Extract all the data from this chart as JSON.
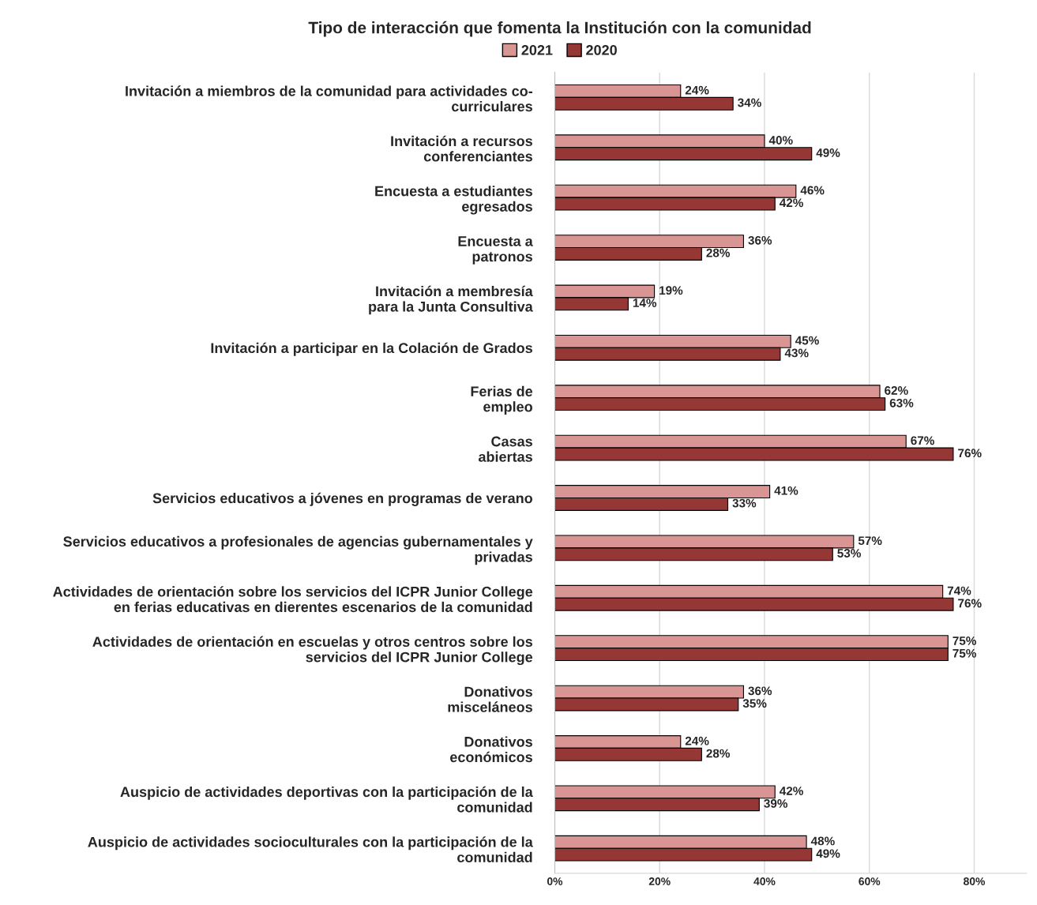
{
  "chart_data": {
    "type": "bar",
    "orientation": "horizontal",
    "title": "Tipo de interacción que fomenta la Institución con la comunidad",
    "categories": [
      "Invitación a miembros de la comunidad para actividades co-\ncurriculares",
      "Invitación a recursos\nconferenciantes",
      "Encuesta a estudiantes\negresados",
      "Encuesta a\npatronos",
      "Invitación a membresía\npara la Junta Consultiva",
      "Invitación a participar en la Colación de Grados",
      "Ferias de\nempleo",
      "Casas\nabiertas",
      "Servicios educativos a jóvenes en programas de verano",
      "Servicios educativos a profesionales de agencias gubernamentales y\nprivadas",
      "Actividades de orientación sobre los servicios del ICPR Junior College\nen ferias educativas en dierentes escenarios de la comunidad",
      "Actividades de orientación en escuelas y otros centros sobre los\nservicios del ICPR Junior College",
      "Donativos\nmisceláneos",
      "Donativos\neconómicos",
      "Auspicio de actividades deportivas con la participación de la\ncomunidad",
      "Auspicio de actividades socioculturales con la participación de la\ncomunidad"
    ],
    "series": [
      {
        "name": "2021",
        "color": "#d99594",
        "values": [
          24,
          40,
          46,
          36,
          19,
          45,
          62,
          67,
          41,
          57,
          74,
          75,
          36,
          24,
          42,
          48
        ],
        "value_labels": [
          "24%",
          "40%",
          "46%",
          "36%",
          "19%",
          "45%",
          "62%",
          "67%",
          "41%",
          "57%",
          "74%",
          "75%",
          "36%",
          "24%",
          "42%",
          "48%"
        ]
      },
      {
        "name": "2020",
        "color": "#953735",
        "values": [
          34,
          49,
          42,
          28,
          14,
          43,
          63,
          76,
          33,
          53,
          76,
          75,
          35,
          28,
          39,
          49
        ],
        "value_labels": [
          "34%",
          "49%",
          "42%",
          "28%",
          "14%",
          "43%",
          "63%",
          "76%",
          "33%",
          "53%",
          "76%",
          "75%",
          "35%",
          "28%",
          "39%",
          "49%"
        ]
      }
    ],
    "xlim": [
      0,
      90
    ],
    "xticks": [
      {
        "value": 0,
        "label": "0%"
      },
      {
        "value": 20,
        "label": "20%"
      },
      {
        "value": 40,
        "label": "40%"
      },
      {
        "value": 60,
        "label": "60%"
      },
      {
        "value": 80,
        "label": "80%"
      }
    ],
    "grid": "x",
    "legend": "top"
  }
}
